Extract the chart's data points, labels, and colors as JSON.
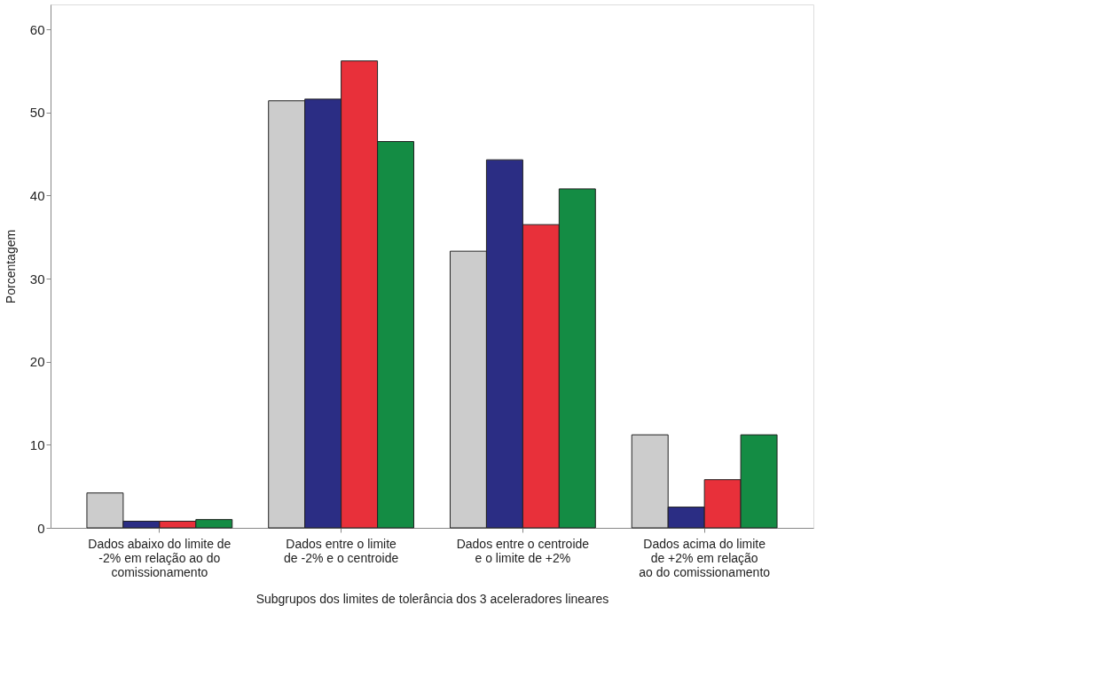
{
  "chart_data": {
    "type": "bar",
    "xlabel": "Subgrupos dos limites de tolerância dos 3 aceleradores lineares",
    "ylabel": "Porcentagem",
    "categories": [
      "Dados abaixo do limite de\n-2% em relação ao do\ncomissionamento",
      "Dados entre o limite\nde -2% e o centroide",
      "Dados entre o centroide\ne o limite de +2%",
      "Dados acima do limite\nde +2% em relação\nao do comissionamento"
    ],
    "series": [
      {
        "color": "#cccccc",
        "values": [
          4.2,
          51.4,
          33.3,
          11.2
        ]
      },
      {
        "color": "#2b2d84",
        "values": [
          0.8,
          51.6,
          44.3,
          2.5
        ]
      },
      {
        "color": "#e8303a",
        "values": [
          0.8,
          56.2,
          36.5,
          5.8
        ]
      },
      {
        "color": "#148c44",
        "values": [
          1.0,
          46.5,
          40.8,
          11.2
        ]
      }
    ],
    "ylim": [
      0,
      63
    ],
    "yticks": [
      0,
      10,
      20,
      30,
      40,
      50,
      60
    ],
    "grid": false,
    "legend": false
  }
}
